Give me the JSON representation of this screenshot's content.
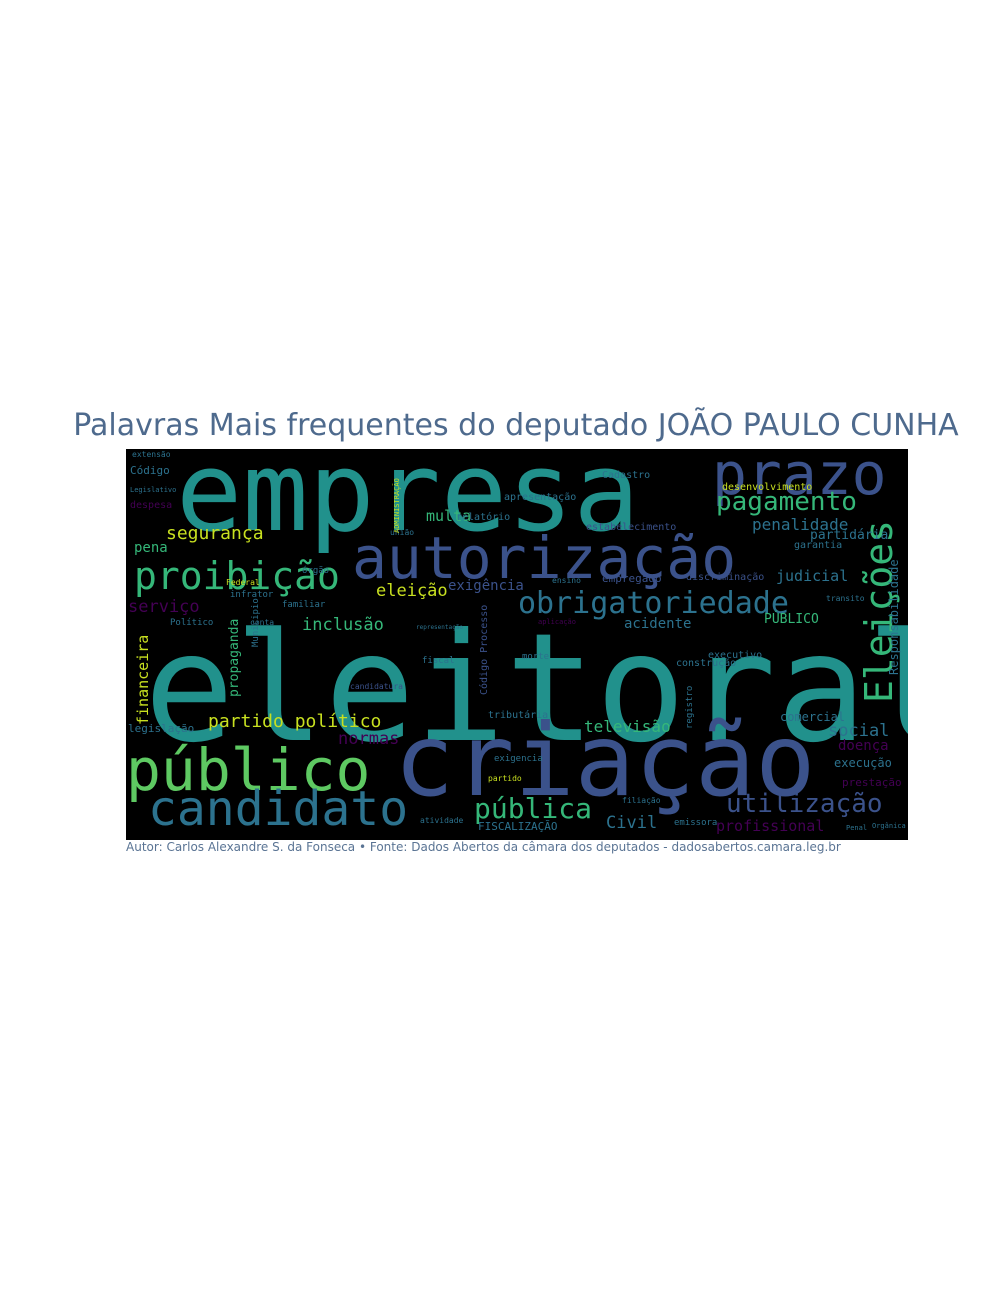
{
  "title": "Palavras Mais frequentes do deputado JOÃO PAULO CUNHA",
  "caption": "Autor: Carlos Alexandre S. da Fonseca • Fonte: Dados Abertos da câmara dos deputados - dadosabertos.camara.leg.br",
  "palette": {
    "teal": "#21918c",
    "blue": "#3b528b",
    "green": "#5ec962",
    "purple": "#440154",
    "yellow": "#c8e020",
    "mid": "#2c728e",
    "lightgreen": "#35b779"
  },
  "words": [
    {
      "text": "eleitoral",
      "color": "teal"
    },
    {
      "text": "empresa",
      "color": "teal"
    },
    {
      "text": "criação",
      "color": "blue"
    },
    {
      "text": "autorização",
      "color": "blue"
    },
    {
      "text": "prazo",
      "color": "blue"
    },
    {
      "text": "público",
      "color": "green"
    },
    {
      "text": "candidato",
      "color": "mid"
    },
    {
      "text": "proibição",
      "color": "lightgreen"
    },
    {
      "text": "obrigatoriedade",
      "color": "mid"
    },
    {
      "text": "Eleições",
      "color": "lightgreen"
    },
    {
      "text": "pagamento",
      "color": "lightgreen"
    },
    {
      "text": "utilização",
      "color": "blue"
    },
    {
      "text": "pública",
      "color": "lightgreen"
    },
    {
      "text": "segurança",
      "color": "yellow"
    },
    {
      "text": "partido político",
      "color": "yellow"
    },
    {
      "text": "inclusão",
      "color": "lightgreen"
    },
    {
      "text": "eleição",
      "color": "yellow"
    },
    {
      "text": "exigência",
      "color": "blue"
    },
    {
      "text": "penalidade",
      "color": "mid"
    },
    {
      "text": "judicial",
      "color": "mid"
    },
    {
      "text": "acidente",
      "color": "mid"
    },
    {
      "text": "PÚBLICO",
      "color": "lightgreen"
    },
    {
      "text": "serviço",
      "color": "purple"
    },
    {
      "text": "multa",
      "color": "lightgreen"
    },
    {
      "text": "pena",
      "color": "lightgreen"
    },
    {
      "text": "normas",
      "color": "purple"
    },
    {
      "text": "televisão",
      "color": "lightgreen"
    },
    {
      "text": "social",
      "color": "mid"
    },
    {
      "text": "doença",
      "color": "purple"
    },
    {
      "text": "profissional",
      "color": "purple"
    },
    {
      "text": "Civil",
      "color": "mid"
    },
    {
      "text": "financeira",
      "color": "yellow"
    },
    {
      "text": "propaganda",
      "color": "lightgreen"
    },
    {
      "text": "Responsabilidade",
      "color": "mid"
    },
    {
      "text": "partidária",
      "color": "mid"
    },
    {
      "text": "comercial",
      "color": "mid"
    },
    {
      "text": "execução",
      "color": "mid"
    },
    {
      "text": "empregado",
      "color": "blue"
    },
    {
      "text": "discriminação",
      "color": "blue"
    },
    {
      "text": "Código",
      "color": "mid"
    },
    {
      "text": "legislação",
      "color": "mid"
    },
    {
      "text": "FISCALIZAÇÃO",
      "color": "mid"
    },
    {
      "text": "tributária",
      "color": "mid"
    },
    {
      "text": "relatório",
      "color": "mid"
    },
    {
      "text": "apresentação",
      "color": "mid"
    },
    {
      "text": "Cadastro",
      "color": "mid"
    },
    {
      "text": "desenvolvimento",
      "color": "yellow"
    },
    {
      "text": "garantia",
      "color": "mid"
    },
    {
      "text": "estabelecimento",
      "color": "blue"
    },
    {
      "text": "executivo",
      "color": "mid"
    },
    {
      "text": "construção",
      "color": "mid"
    },
    {
      "text": "registro",
      "color": "mid"
    },
    {
      "text": "Código Processo",
      "color": "blue"
    },
    {
      "text": "fiscal",
      "color": "mid"
    },
    {
      "text": "morte",
      "color": "mid"
    },
    {
      "text": "representação",
      "color": "mid"
    },
    {
      "text": "aplicação",
      "color": "purple"
    },
    {
      "text": "familiar",
      "color": "mid"
    },
    {
      "text": "conta",
      "color": "mid"
    },
    {
      "text": "Político",
      "color": "mid"
    },
    {
      "text": "candidatura",
      "color": "blue"
    },
    {
      "text": "órgão",
      "color": "mid"
    },
    {
      "text": "união",
      "color": "mid"
    },
    {
      "text": "extensão",
      "color": "mid"
    },
    {
      "text": "despesa",
      "color": "purple"
    },
    {
      "text": "Legislativo",
      "color": "mid"
    },
    {
      "text": "Federal",
      "color": "yellow"
    },
    {
      "text": "Municipio",
      "color": "mid"
    },
    {
      "text": "emissora",
      "color": "mid"
    },
    {
      "text": "filiação",
      "color": "mid"
    },
    {
      "text": "partido",
      "color": "yellow"
    },
    {
      "text": "exigencia",
      "color": "mid"
    },
    {
      "text": "atividade",
      "color": "mid"
    },
    {
      "text": "Penal",
      "color": "mid"
    },
    {
      "text": "Orgânica",
      "color": "mid"
    },
    {
      "text": "prestação",
      "color": "purple"
    },
    {
      "text": "transito",
      "color": "mid"
    },
    {
      "text": "ensino",
      "color": "mid"
    },
    {
      "text": "ADMINISTRAÇÃO",
      "color": "yellow"
    },
    {
      "text": "infrator",
      "color": "mid"
    }
  ]
}
